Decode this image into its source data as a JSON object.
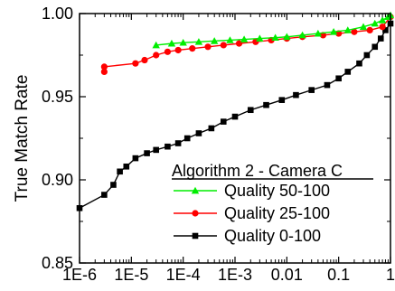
{
  "chart_data": {
    "type": "line",
    "title": "",
    "xlabel": "",
    "ylabel": "True Match Rate",
    "x_scale": "log",
    "xlim": [
      1e-06,
      1
    ],
    "ylim": [
      0.85,
      1.0
    ],
    "grid": false,
    "legend_position": "bottom-right",
    "legend_title": "Algorithm 2 - Camera C",
    "x_tick_labels": [
      "1E-6",
      "1E-5",
      "1E-4",
      "1E-3",
      "0.01",
      "0.1",
      "1"
    ],
    "y_tick_labels": [
      "0.85",
      "0.90",
      "0.95",
      "1.00"
    ],
    "series": [
      {
        "name": "Quality 50-100",
        "color": "#00ee00",
        "marker": "triangle",
        "x": [
          3e-05,
          6e-05,
          0.0001,
          0.0002,
          0.0004,
          0.0008,
          0.0015,
          0.003,
          0.006,
          0.01,
          0.02,
          0.04,
          0.08,
          0.15,
          0.3,
          0.5,
          0.7,
          0.9,
          1.0
        ],
        "y": [
          0.981,
          0.982,
          0.9825,
          0.983,
          0.9835,
          0.984,
          0.9845,
          0.985,
          0.9855,
          0.986,
          0.987,
          0.988,
          0.989,
          0.99,
          0.992,
          0.994,
          0.996,
          0.998,
          0.999
        ]
      },
      {
        "name": "Quality 25-100",
        "color": "#ff0000",
        "marker": "circle",
        "x": [
          3e-06,
          3e-06,
          1.2e-05,
          1.8e-05,
          3e-05,
          5e-05,
          8e-05,
          0.00015,
          0.0003,
          0.0006,
          0.0012,
          0.0025,
          0.005,
          0.01,
          0.02,
          0.05,
          0.1,
          0.2,
          0.4,
          0.7,
          1.0
        ],
        "y": [
          0.965,
          0.968,
          0.97,
          0.972,
          0.975,
          0.977,
          0.978,
          0.979,
          0.98,
          0.981,
          0.982,
          0.983,
          0.984,
          0.985,
          0.986,
          0.987,
          0.988,
          0.989,
          0.99,
          0.992,
          0.998
        ]
      },
      {
        "name": "Quality 0-100",
        "color": "#000000",
        "marker": "square",
        "x": [
          1e-06,
          3e-06,
          4.5e-06,
          6e-06,
          8e-06,
          1.2e-05,
          2e-05,
          3e-05,
          5e-05,
          8e-05,
          0.00012,
          0.0002,
          0.00035,
          0.0006,
          0.001,
          0.002,
          0.004,
          0.008,
          0.015,
          0.03,
          0.06,
          0.1,
          0.15,
          0.25,
          0.35,
          0.5,
          0.65,
          0.8,
          1.0
        ],
        "y": [
          0.883,
          0.891,
          0.897,
          0.905,
          0.908,
          0.913,
          0.916,
          0.918,
          0.92,
          0.922,
          0.925,
          0.928,
          0.931,
          0.935,
          0.938,
          0.942,
          0.945,
          0.948,
          0.951,
          0.954,
          0.957,
          0.961,
          0.965,
          0.97,
          0.975,
          0.98,
          0.985,
          0.99,
          0.994
        ]
      }
    ]
  }
}
